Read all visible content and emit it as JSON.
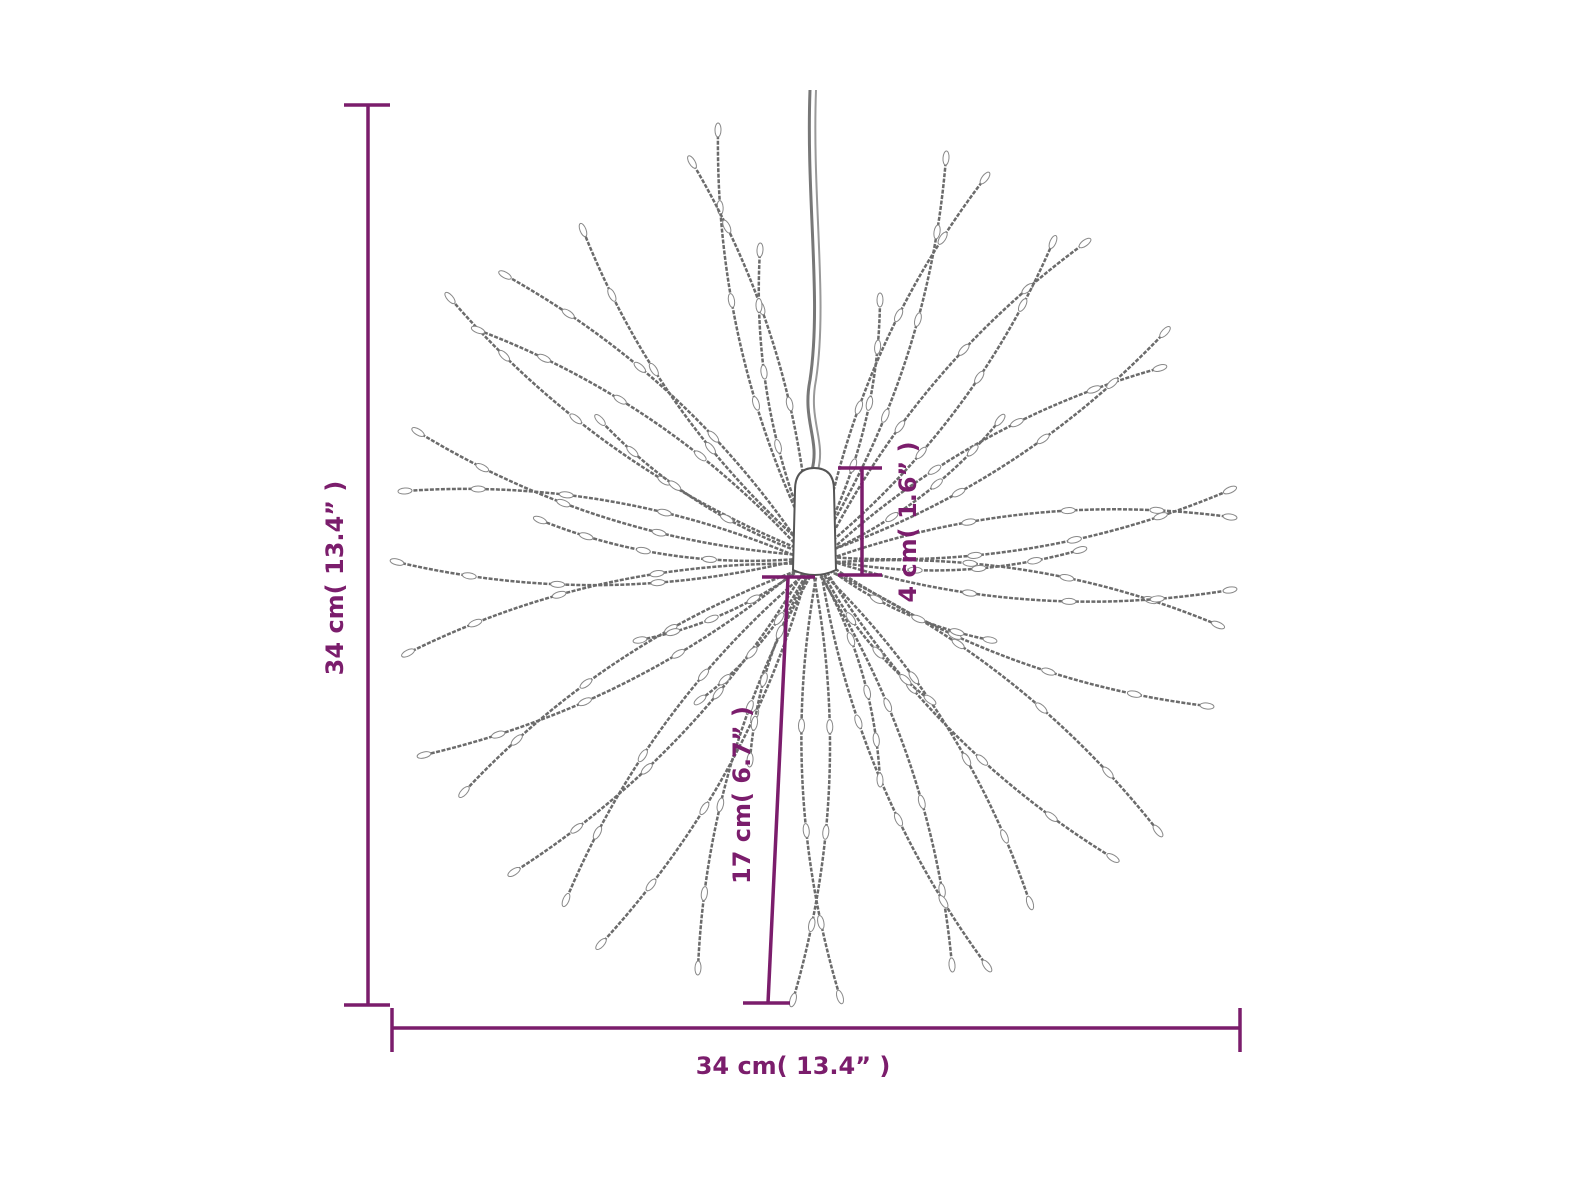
{
  "diagram": {
    "accent_color": "#7b1d6c",
    "strand_color": "#6b6b6b",
    "dimensions": {
      "height": "34 cm( 13.4” )",
      "width": "34 cm( 13.4” )",
      "hub_height": "4 cm( 1.6” )",
      "radius": "17 cm( 6.7” )"
    }
  }
}
